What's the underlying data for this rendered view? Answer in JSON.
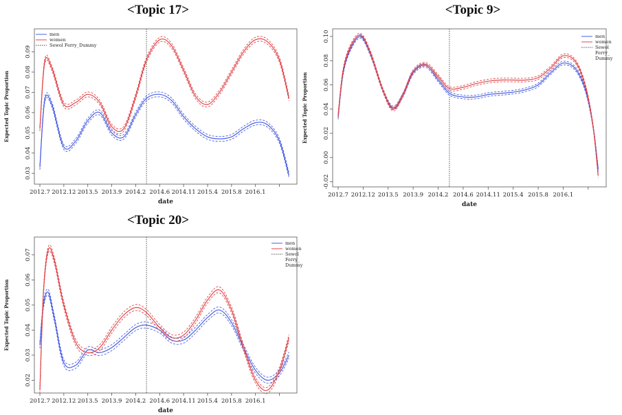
{
  "colors": {
    "men": "#4a5fe0",
    "women": "#e0454a",
    "dummy": "#444444"
  },
  "chart_data": [
    {
      "type": "line",
      "title": "<Topic 17>",
      "xlabel": "date",
      "ylabel": "Expected Topic Proportion",
      "xticks": [
        "2012.7",
        "2012.12",
        "2013.5",
        "2013.9",
        "2014.2",
        "2014.6",
        "2014.11",
        "2015.4",
        "2015.8",
        "2016.1",
        ""
      ],
      "yticks": [
        "0.03",
        "0.04",
        "0.05",
        "0.06",
        "0.07",
        "0.08",
        "0.09"
      ],
      "ytick_values": [
        0.03,
        0.04,
        0.05,
        0.06,
        0.07,
        0.08,
        0.09
      ],
      "ylim": [
        0.026,
        0.1
      ],
      "x_range": [
        0,
        10.5
      ],
      "dummy_x": 4.45,
      "band": 0.0012,
      "legend": [
        "men",
        "women",
        "Sewol Ferry_Dummy"
      ],
      "legend_position": "top-left",
      "series": [
        {
          "name": "men",
          "x": [
            0,
            0.2,
            0.5,
            1,
            1.5,
            2,
            2.5,
            3,
            3.5,
            4,
            4.45,
            5,
            5.5,
            6,
            6.5,
            7,
            7.5,
            8,
            8.5,
            9,
            9.5,
            10,
            10.4
          ],
          "values": [
            0.033,
            0.066,
            0.064,
            0.043,
            0.046,
            0.056,
            0.06,
            0.05,
            0.048,
            0.059,
            0.067,
            0.069,
            0.066,
            0.058,
            0.052,
            0.048,
            0.047,
            0.048,
            0.052,
            0.055,
            0.054,
            0.046,
            0.029
          ]
        },
        {
          "name": "women",
          "x": [
            0,
            0.2,
            0.5,
            1,
            1.5,
            2,
            2.5,
            3,
            3.5,
            4,
            4.45,
            5,
            5.5,
            6,
            6.5,
            7,
            7.5,
            8,
            8.5,
            9,
            9.5,
            10,
            10.4
          ],
          "values": [
            0.052,
            0.085,
            0.082,
            0.064,
            0.065,
            0.069,
            0.065,
            0.053,
            0.052,
            0.068,
            0.086,
            0.096,
            0.093,
            0.081,
            0.068,
            0.064,
            0.07,
            0.08,
            0.09,
            0.096,
            0.095,
            0.086,
            0.067
          ]
        }
      ]
    },
    {
      "type": "line",
      "title": "<Topic 9>",
      "xlabel": "date",
      "ylabel": "Expected Topic Proportion",
      "xticks": [
        "2012.7",
        "2012.12",
        "2013.5",
        "2013.9",
        "2014.2",
        "2014.6",
        "2014.11",
        "2015.4",
        "2015.8",
        "2016.1",
        ""
      ],
      "yticks": [
        "-0.02",
        "0.00",
        "0.02",
        "0.04",
        "0.06",
        "0.08",
        "0.10"
      ],
      "ytick_values": [
        -0.02,
        0,
        0.02,
        0.04,
        0.06,
        0.08,
        0.1
      ],
      "ylim": [
        -0.022,
        0.104
      ],
      "x_range": [
        0,
        10.5
      ],
      "dummy_x": 4.45,
      "band": 0.0015,
      "legend": [
        "men",
        "women",
        "Sewol\nFerry_\nDummy"
      ],
      "legend_position": "top-right",
      "series": [
        {
          "name": "men",
          "x": [
            0,
            0.2,
            0.5,
            0.9,
            1.3,
            1.8,
            2.2,
            2.6,
            3,
            3.5,
            4,
            4.45,
            5,
            5.5,
            6,
            6.5,
            7,
            7.5,
            8,
            8.5,
            9,
            9.5,
            9.9,
            10.2,
            10.4
          ],
          "values": [
            0.033,
            0.07,
            0.09,
            0.1,
            0.085,
            0.055,
            0.041,
            0.052,
            0.07,
            0.076,
            0.064,
            0.053,
            0.05,
            0.05,
            0.052,
            0.053,
            0.054,
            0.056,
            0.06,
            0.07,
            0.078,
            0.073,
            0.055,
            0.025,
            -0.01
          ]
        },
        {
          "name": "women",
          "x": [
            0,
            0.2,
            0.5,
            0.9,
            1.3,
            1.8,
            2.2,
            2.6,
            3,
            3.5,
            4,
            4.45,
            5,
            5.5,
            6,
            6.5,
            7,
            7.5,
            8,
            8.5,
            9,
            9.5,
            9.9,
            10.2,
            10.4
          ],
          "values": [
            0.035,
            0.072,
            0.092,
            0.101,
            0.086,
            0.055,
            0.04,
            0.052,
            0.071,
            0.077,
            0.067,
            0.057,
            0.058,
            0.061,
            0.063,
            0.064,
            0.064,
            0.064,
            0.066,
            0.074,
            0.084,
            0.079,
            0.058,
            0.025,
            -0.015
          ]
        }
      ]
    },
    {
      "type": "line",
      "title": "<Topic 20>",
      "xlabel": "date",
      "ylabel": "Expected Topic Proportion",
      "xticks": [
        "2012.7",
        "2012.12",
        "2013.5",
        "2013.9",
        "2014.2",
        "2014.6",
        "2014.11",
        "2015.4",
        "2015.8",
        "2016.1",
        ""
      ],
      "yticks": [
        "0.02",
        "0.03",
        "0.04",
        "0.05",
        "0.06",
        "0.07"
      ],
      "ytick_values": [
        0.02,
        0.03,
        0.04,
        0.05,
        0.06,
        0.07
      ],
      "ylim": [
        0.016,
        0.076
      ],
      "x_range": [
        0,
        10.5
      ],
      "dummy_x": 4.45,
      "band": 0.0012,
      "legend": [
        "men",
        "women",
        "Sewol\nFerry_\nDummy"
      ],
      "legend_position": "top-right",
      "series": [
        {
          "name": "men",
          "x": [
            0,
            0.15,
            0.35,
            0.6,
            1,
            1.5,
            2,
            2.5,
            3,
            3.5,
            4,
            4.45,
            5,
            5.5,
            6,
            6.5,
            7,
            7.5,
            8,
            8.5,
            9,
            9.5,
            10,
            10.4
          ],
          "values": [
            0.034,
            0.05,
            0.055,
            0.045,
            0.027,
            0.026,
            0.032,
            0.031,
            0.033,
            0.037,
            0.041,
            0.042,
            0.04,
            0.036,
            0.036,
            0.04,
            0.045,
            0.048,
            0.043,
            0.033,
            0.024,
            0.02,
            0.023,
            0.03
          ]
        },
        {
          "name": "women",
          "x": [
            0,
            0.15,
            0.35,
            0.6,
            1,
            1.5,
            2,
            2.5,
            3,
            3.5,
            4,
            4.45,
            5,
            5.5,
            6,
            6.5,
            7,
            7.5,
            8,
            8.5,
            9,
            9.5,
            10,
            10.4
          ],
          "values": [
            0.016,
            0.055,
            0.072,
            0.068,
            0.05,
            0.035,
            0.031,
            0.033,
            0.04,
            0.046,
            0.049,
            0.047,
            0.041,
            0.037,
            0.038,
            0.044,
            0.052,
            0.056,
            0.048,
            0.033,
            0.02,
            0.016,
            0.024,
            0.037
          ]
        }
      ]
    }
  ]
}
